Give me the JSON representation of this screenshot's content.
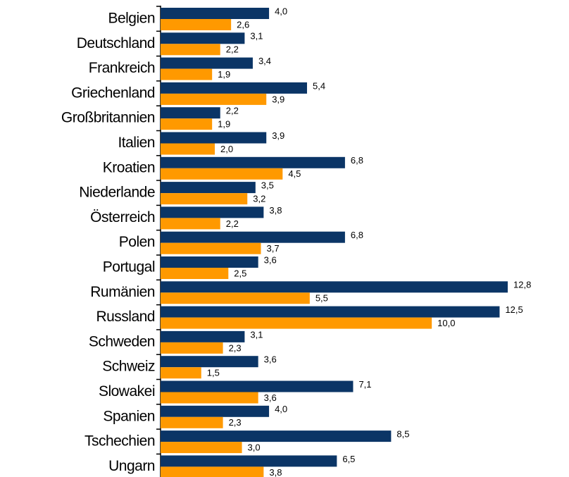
{
  "chart_data": {
    "type": "barh",
    "categories": [
      "Belgien",
      "Deutschland",
      "Frankreich",
      "Griechenland",
      "Großbritannien",
      "Italien",
      "Kroatien",
      "Niederlande",
      "Österreich",
      "Polen",
      "Portugal",
      "Rumänien",
      "Russland",
      "Schweden",
      "Schweiz",
      "Slowakei",
      "Spanien",
      "Tschechien",
      "Ungarn"
    ],
    "series": [
      {
        "color": "#0b3566",
        "values": [
          4.0,
          3.1,
          3.4,
          5.4,
          2.2,
          3.9,
          6.8,
          3.5,
          3.8,
          6.8,
          3.6,
          12.8,
          12.5,
          3.1,
          3.6,
          7.1,
          4.0,
          8.5,
          6.5
        ],
        "value_labels": [
          "4,0",
          "3,1",
          "3,4",
          "5,4",
          "2,2",
          "3,9",
          "6,8",
          "3,5",
          "3,8",
          "6,8",
          "3,6",
          "12,8",
          "12,5",
          "3,1",
          "3,6",
          "7,1",
          "4,0",
          "8,5",
          "6,5"
        ]
      },
      {
        "color": "#ff9900",
        "values": [
          2.6,
          2.2,
          1.9,
          3.9,
          1.9,
          2.0,
          4.5,
          3.2,
          2.2,
          3.7,
          2.5,
          5.5,
          10.0,
          2.3,
          1.5,
          3.6,
          2.3,
          3.0,
          3.8
        ],
        "value_labels": [
          "2,6",
          "2,2",
          "1,9",
          "3,9",
          "1,9",
          "2,0",
          "4,5",
          "3,2",
          "2,2",
          "3,7",
          "2,5",
          "5,5",
          "10,0",
          "2,3",
          "1,5",
          "3,6",
          "2,3",
          "3,0",
          "3,8"
        ]
      }
    ]
  }
}
